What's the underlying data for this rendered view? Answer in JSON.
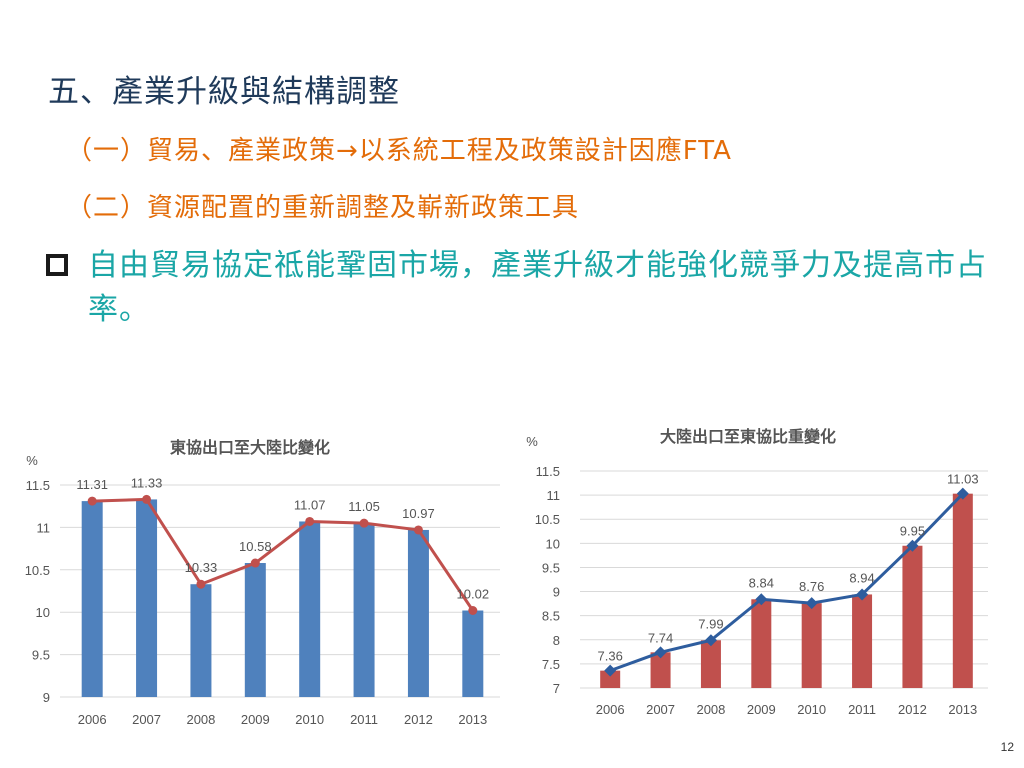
{
  "slide": {
    "title": "五、產業升級與結構調整",
    "sub1": "（一）貿易、產業政策→以系統工程及政策設計因應FTA",
    "sub2": "（二）資源配置的重新調整及嶄新政策工具",
    "bullet": "自由貿易協定祗能鞏固市場，產業升級才能強化競爭力及提高市占率。",
    "page_number": "12"
  },
  "chart_data": [
    {
      "type": "bar",
      "title": "東協出口至大陸比變化",
      "ylabel": "%",
      "categories": [
        "2006",
        "2007",
        "2008",
        "2009",
        "2010",
        "2011",
        "2012",
        "2013"
      ],
      "series": [
        {
          "values": [
            11.31,
            11.33,
            10.33,
            10.58,
            11.07,
            11.05,
            10.97,
            10.02
          ],
          "color": "#4f81bd",
          "kind": "bar"
        },
        {
          "values": [
            11.31,
            11.33,
            10.33,
            10.58,
            11.07,
            11.05,
            10.97,
            10.02
          ],
          "color": "#c0504d",
          "kind": "line"
        }
      ],
      "ylim": [
        9,
        11.5
      ],
      "yticks": [
        "11.5",
        "11",
        "10.5",
        "10",
        "9.5",
        "9"
      ],
      "data_labels": [
        "11.31",
        "11.33",
        "10.33",
        "10.58",
        "11.07",
        "11.05",
        "10.97",
        "10.02"
      ],
      "grid": true
    },
    {
      "type": "bar",
      "title": "大陸出口至東協比重變化",
      "ylabel": "%",
      "categories": [
        "2006",
        "2007",
        "2008",
        "2009",
        "2010",
        "2011",
        "2012",
        "2013"
      ],
      "series": [
        {
          "values": [
            7.36,
            7.74,
            7.99,
            8.84,
            8.76,
            8.94,
            9.95,
            11.03
          ],
          "color": "#c0504d",
          "kind": "bar"
        },
        {
          "values": [
            7.36,
            7.74,
            7.99,
            8.84,
            8.76,
            8.94,
            9.95,
            11.03
          ],
          "color": "#2e5d9e",
          "kind": "line"
        }
      ],
      "ylim": [
        7,
        11.5
      ],
      "yticks": [
        "11.5",
        "11",
        "10.5",
        "10",
        "9.5",
        "9",
        "8.5",
        "8",
        "7.5",
        "7"
      ],
      "data_labels": [
        "7.36",
        "7.74",
        "7.99",
        "8.84",
        "8.76",
        "8.94",
        "9.95",
        "11.03"
      ],
      "grid": true
    }
  ]
}
